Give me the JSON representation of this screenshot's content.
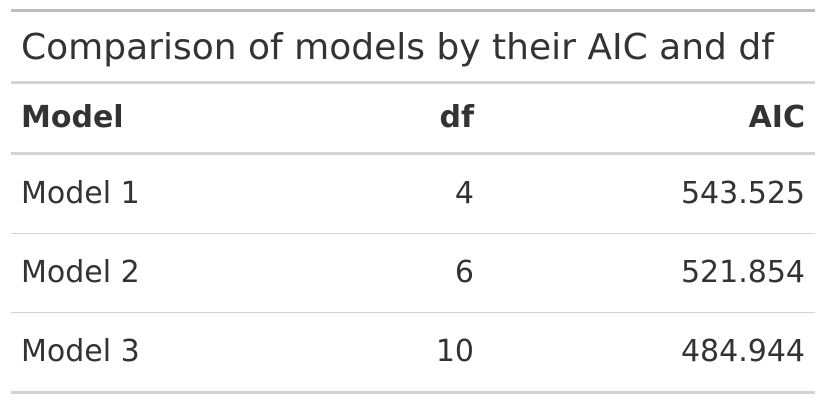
{
  "table": {
    "title": "Comparison of models by their AIC and df",
    "columns": [
      "Model",
      "df",
      "AIC"
    ],
    "rows": [
      [
        "Model 1",
        "4",
        "543.525"
      ],
      [
        "Model 2",
        "6",
        "521.854"
      ],
      [
        "Model 3",
        "10",
        "484.944"
      ]
    ]
  },
  "colors": {
    "text": "#333333",
    "rule_strong": "#bdbdbd",
    "rule_light": "#d3d3d3"
  }
}
